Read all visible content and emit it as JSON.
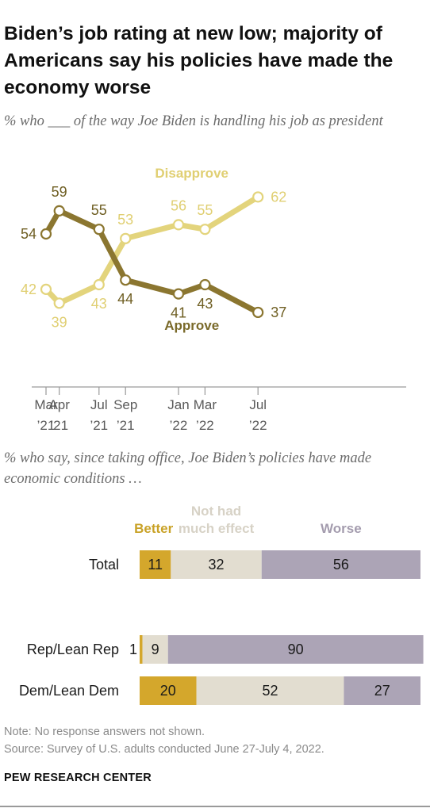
{
  "title": "Biden’s job rating at new low; majority of Americans say his policies have made the economy worse",
  "subtitle_line": "% who ___ of the way Joe Biden is handling his job as president",
  "subtitle_bar": "% who say, since taking office, Joe Biden’s policies have made economic conditions …",
  "colors": {
    "approve": "#8b7630",
    "disapprove": "#e3d47c",
    "better": "#d4a72c",
    "better_label": "#c9a227",
    "no_effect": "#e2ddd0",
    "no_effect_label": "#d7d2c6",
    "worse": "#aca4b6",
    "worse_label": "#a49cae",
    "axis": "#9a9a9a"
  },
  "chart_data": [
    {
      "type": "line",
      "x_categories": [
        {
          "top": "Mar",
          "bottom": "’21",
          "date": "2021-03"
        },
        {
          "top": "Apr",
          "bottom": "’21",
          "date": "2021-04"
        },
        {
          "top": "Jul",
          "bottom": "’21",
          "date": "2021-07"
        },
        {
          "top": "Sep",
          "bottom": "’21",
          "date": "2021-09"
        },
        {
          "top": "Jan",
          "bottom": "’22",
          "date": "2022-01"
        },
        {
          "top": "Mar",
          "bottom": "’22",
          "date": "2022-03"
        },
        {
          "top": "Jul",
          "bottom": "’22",
          "date": "2022-07"
        }
      ],
      "series": [
        {
          "name": "Disapprove",
          "values": [
            42,
            39,
            43,
            53,
            56,
            55,
            62
          ]
        },
        {
          "name": "Approve",
          "values": [
            54,
            59,
            55,
            44,
            41,
            43,
            37
          ]
        }
      ],
      "ylim": [
        20,
        75
      ]
    },
    {
      "type": "bar",
      "stacked": true,
      "orientation": "horizontal",
      "legend": [
        "Better",
        "Not had much effect",
        "Worse"
      ],
      "categories": [
        "Total",
        "Rep/Lean Rep",
        "Dem/Lean Dem"
      ],
      "series": [
        {
          "name": "Better",
          "values": [
            11,
            1,
            20
          ]
        },
        {
          "name": "Not had much effect",
          "values": [
            32,
            9,
            52
          ]
        },
        {
          "name": "Worse",
          "values": [
            56,
            90,
            27
          ]
        }
      ]
    }
  ],
  "note": "Note: No response answers not shown.",
  "source": "Source: Survey of U.S. adults conducted June 27-July 4, 2022.",
  "footer": "PEW RESEARCH CENTER"
}
